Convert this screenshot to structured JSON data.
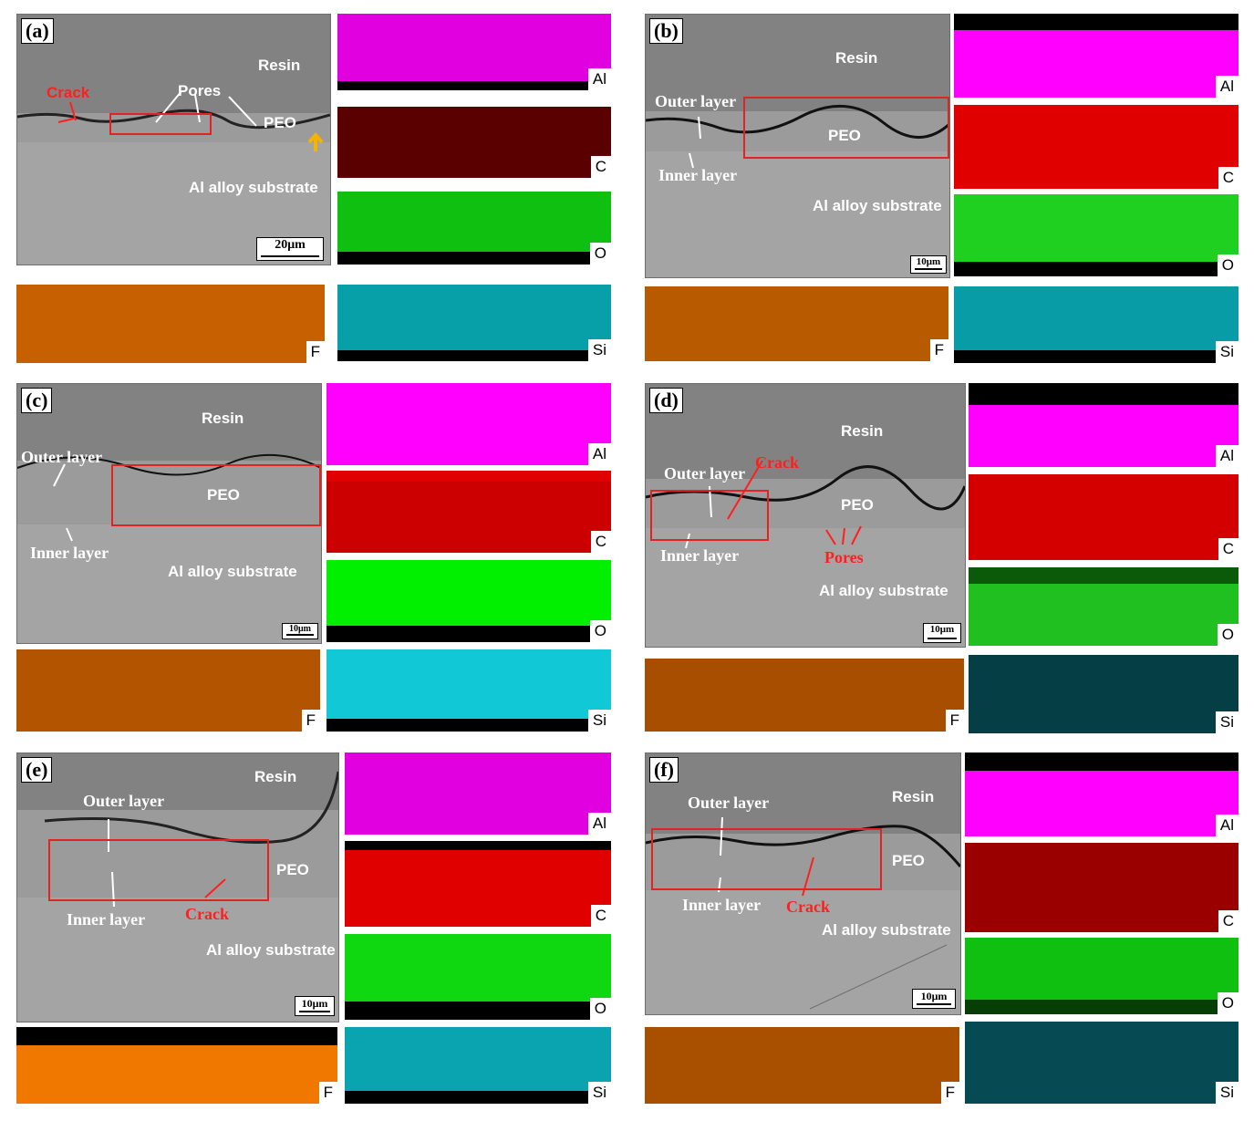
{
  "panels": {
    "a": {
      "letter": "(a)",
      "labels": {
        "resin": "Resin",
        "crack": "Crack",
        "pores": "Pores",
        "peo": "PEO",
        "substrate": "Al alloy substrate"
      },
      "scale": "20μm",
      "maps": {
        "al": "Al",
        "c": "C",
        "o": "O",
        "f": "F",
        "si": "Si"
      }
    },
    "b": {
      "letter": "(b)",
      "labels": {
        "resin": "Resin",
        "outer": "Outer layer",
        "inner": "Inner layer",
        "peo": "PEO",
        "substrate": "Al alloy substrate"
      },
      "scale": "10μm",
      "maps": {
        "al": "Al",
        "c": "C",
        "o": "O",
        "f": "F",
        "si": "Si"
      }
    },
    "c": {
      "letter": "(c)",
      "labels": {
        "resin": "Resin",
        "outer": "Outer layer",
        "inner": "Inner layer",
        "peo": "PEO",
        "substrate": "Al alloy substrate"
      },
      "scale": "10μm",
      "maps": {
        "al": "Al",
        "c": "C",
        "o": "O",
        "f": "F",
        "si": "Si"
      }
    },
    "d": {
      "letter": "(d)",
      "labels": {
        "resin": "Resin",
        "outer": "Outer layer",
        "crack": "Crack",
        "inner": "Inner layer",
        "peo": "PEO",
        "pores": "Pores",
        "substrate": "Al alloy substrate"
      },
      "scale": "10μm",
      "maps": {
        "al": "Al",
        "c": "C",
        "o": "O",
        "f": "F",
        "si": "Si"
      }
    },
    "e": {
      "letter": "(e)",
      "labels": {
        "resin": "Resin",
        "outer": "Outer layer",
        "inner": "Inner layer",
        "crack": "Crack",
        "peo": "PEO",
        "substrate": "Al alloy substrate"
      },
      "scale": "10μm",
      "maps": {
        "al": "Al",
        "c": "C",
        "o": "O",
        "f": "F",
        "si": "Si"
      }
    },
    "f": {
      "letter": "(f)",
      "labels": {
        "resin": "Resin",
        "outer": "Outer layer",
        "inner": "Inner layer",
        "crack": "Crack",
        "peo": "PEO",
        "substrate": "Al alloy substrate"
      },
      "scale": "10μm",
      "maps": {
        "al": "Al",
        "c": "C",
        "o": "O",
        "f": "F",
        "si": "Si"
      }
    }
  },
  "colors": {
    "al": "#ff00ff",
    "c": "#e80000",
    "o": "#00ee00",
    "f": "#f07800",
    "si": "#00e8f0",
    "annotation_red": "#ff1f1f",
    "roi": "#e32222"
  }
}
